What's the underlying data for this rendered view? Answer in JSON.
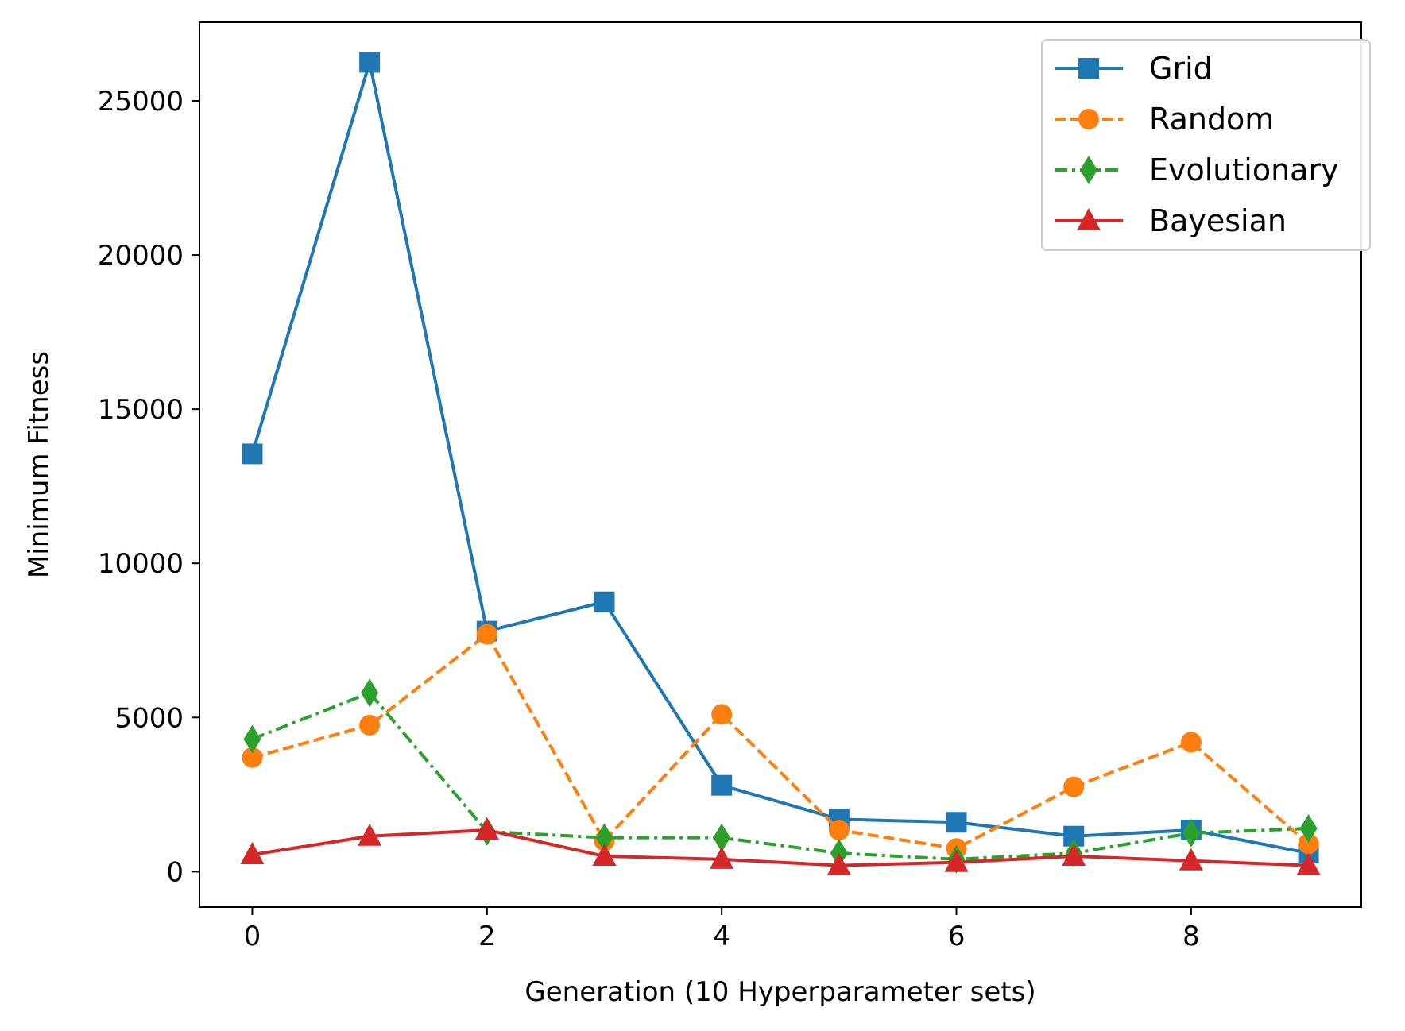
{
  "chart_data": {
    "type": "line",
    "title": "",
    "xlabel": "Generation (10 Hyperparameter sets)",
    "ylabel": "Minimum Fitness",
    "xlim": [
      -0.45,
      9.45
    ],
    "ylim": [
      -1150,
      27550
    ],
    "x_ticks": [
      0,
      2,
      4,
      6,
      8
    ],
    "y_ticks": [
      0,
      5000,
      10000,
      15000,
      20000,
      25000
    ],
    "grid": false,
    "legend_position": "top-right",
    "x": [
      0,
      1,
      2,
      3,
      4,
      5,
      6,
      7,
      8,
      9
    ],
    "series": [
      {
        "name": "Grid",
        "color": "#1f77b4",
        "line_style": "solid",
        "marker": "square",
        "values": [
          13550,
          26250,
          7800,
          8750,
          2800,
          1700,
          1600,
          1150,
          1350,
          600
        ]
      },
      {
        "name": "Random",
        "color": "#ff7f0e",
        "line_style": "dashed",
        "marker": "circle",
        "values": [
          3700,
          4750,
          7700,
          1000,
          5100,
          1350,
          750,
          2750,
          4200,
          900
        ]
      },
      {
        "name": "Evolutionary",
        "color": "#2ca02c",
        "line_style": "dashdot",
        "marker": "diamond",
        "values": [
          4300,
          5800,
          1300,
          1100,
          1100,
          600,
          400,
          600,
          1250,
          1400
        ]
      },
      {
        "name": "Bayesian",
        "color": "#d62728",
        "line_style": "solid",
        "marker": "triangle",
        "values": [
          550,
          1150,
          1350,
          500,
          400,
          200,
          300,
          500,
          350,
          200
        ]
      }
    ]
  }
}
